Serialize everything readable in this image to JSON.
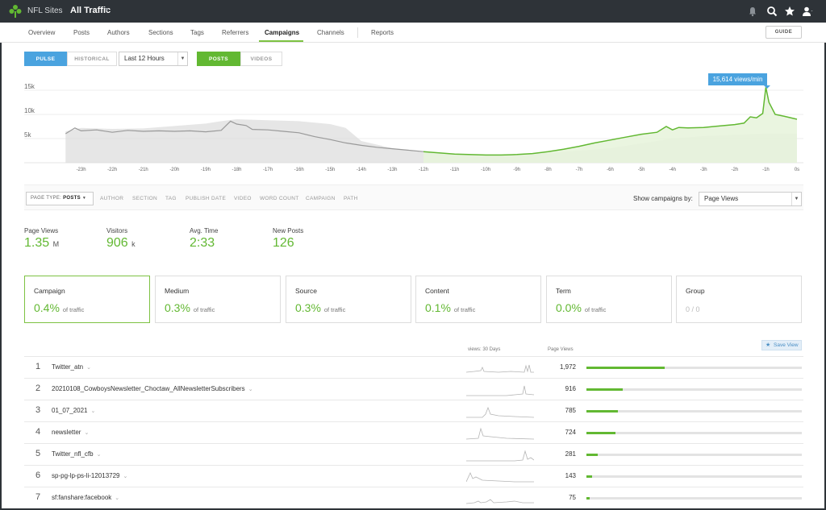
{
  "topbar": {
    "site": "NFL Sites",
    "traffic": "All Traffic",
    "icons": [
      "bell-icon",
      "search-icon",
      "star-icon",
      "user-icon"
    ]
  },
  "nav": {
    "items": [
      "Overview",
      "Posts",
      "Authors",
      "Sections",
      "Tags",
      "Referrers",
      "Campaigns",
      "Channels",
      "Reports"
    ],
    "active": "Campaigns",
    "guide": "GUIDE"
  },
  "controls": {
    "pulse": "PULSE",
    "historical": "HISTORICAL",
    "time_range": "Last 12 Hours",
    "posts": "POSTS",
    "videos": "VIDEOS"
  },
  "chart_data": {
    "type": "area",
    "peak_label": "15,614 views/min",
    "y_ticks": [
      "15k",
      "10k",
      "5k"
    ],
    "x_ticks": [
      "-23h",
      "-22h",
      "-21h",
      "-20h",
      "-19h",
      "-18h",
      "-17h",
      "-16h",
      "-15h",
      "-14h",
      "-13h",
      "-12h",
      "-11h",
      "-10h",
      "-9h",
      "-8h",
      "-7h",
      "-6h",
      "-5h",
      "-4h",
      "-3h",
      "-2h",
      "-1h",
      "0s"
    ],
    "ylim": [
      0,
      18000
    ],
    "series": [
      {
        "role": "comparison",
        "color": "#cfcfcf",
        "x": [
          -23.5,
          -23,
          -22,
          -21,
          -20,
          -19,
          -18.5,
          -18,
          -17.5,
          -17,
          -16,
          -15,
          -14.5,
          -14,
          -13,
          -12,
          -11,
          -10,
          -9,
          -8,
          -7,
          -6,
          -5,
          -4,
          -3,
          -2,
          -1,
          0
        ],
        "values": [
          6500,
          7200,
          7000,
          7100,
          7600,
          8100,
          8600,
          9000,
          8900,
          8800,
          8600,
          8000,
          7200,
          4500,
          3000,
          2200,
          1800,
          1500,
          1600,
          2000,
          2500,
          3000,
          4000,
          5000,
          5500,
          5800,
          6000,
          6000
        ]
      },
      {
        "role": "previous-12h",
        "color": "#999999",
        "x": [
          -23.5,
          -23.2,
          -23,
          -22.5,
          -22,
          -21.5,
          -21,
          -20.5,
          -20,
          -19.5,
          -19,
          -18.5,
          -18.2,
          -18,
          -17.7,
          -17.5,
          -17,
          -16.5,
          -16,
          -15.5,
          -15,
          -14.5,
          -14,
          -13.5,
          -13,
          -12.5,
          -12
        ],
        "values": [
          6000,
          7200,
          6600,
          6800,
          6300,
          6700,
          6500,
          6600,
          6500,
          6600,
          6400,
          6700,
          8600,
          8000,
          7700,
          6900,
          6800,
          6500,
          6200,
          5400,
          4800,
          4100,
          3600,
          3200,
          2900,
          2600,
          2300
        ]
      },
      {
        "role": "current",
        "color": "#62b832",
        "x": [
          -12,
          -11,
          -10,
          -9.5,
          -9,
          -8.5,
          -8,
          -7.5,
          -7,
          -6.5,
          -6,
          -5.5,
          -5,
          -4.5,
          -4.2,
          -4,
          -3.8,
          -3.5,
          -3,
          -2.5,
          -2,
          -1.7,
          -1.5,
          -1.3,
          -1.1,
          -1,
          -0.9,
          -0.7,
          -0.4,
          0
        ],
        "values": [
          2300,
          1800,
          1600,
          1600,
          1700,
          1900,
          2300,
          2800,
          3400,
          4100,
          4700,
          5300,
          5900,
          6300,
          7500,
          6800,
          7300,
          7200,
          7300,
          7600,
          7900,
          8200,
          9500,
          9300,
          10200,
          15614,
          12500,
          10000,
          9600,
          9000
        ]
      }
    ]
  },
  "filters": {
    "page_type_label": "PAGE TYPE:",
    "page_type_value": "POSTS",
    "items": [
      "AUTHOR",
      "SECTION",
      "TAG",
      "PUBLISH DATE",
      "VIDEO",
      "WORD COUNT",
      "CAMPAIGN",
      "PATH"
    ],
    "show_by_label": "Show campaigns by:",
    "show_by_value": "Page Views"
  },
  "stats": [
    {
      "label": "Page Views",
      "value": "1.35",
      "unit": "M"
    },
    {
      "label": "Visitors",
      "value": "906",
      "unit": "k"
    },
    {
      "label": "Avg. Time",
      "value": "2:33",
      "unit": ""
    },
    {
      "label": "New Posts",
      "value": "126",
      "unit": ""
    }
  ],
  "cards": [
    {
      "title": "Campaign",
      "value": "0.4%",
      "sub": "of traffic"
    },
    {
      "title": "Medium",
      "value": "0.3%",
      "sub": "of traffic"
    },
    {
      "title": "Source",
      "value": "0.3%",
      "sub": "of traffic"
    },
    {
      "title": "Content",
      "value": "0.1%",
      "sub": "of traffic"
    },
    {
      "title": "Term",
      "value": "0.0%",
      "sub": "of traffic"
    },
    {
      "title": "Group",
      "value": "0 / 0",
      "sub": ""
    }
  ],
  "table": {
    "col_spark": "views: 30 Days",
    "col_views": "Page Views",
    "save_view": "Save View",
    "rows": [
      {
        "rank": "1",
        "name": "Twitter_atn",
        "views": "1,972",
        "fraction": 0.365
      },
      {
        "rank": "2",
        "name": "20210108_CowboysNewsletter_Choctaw_AllNewsletterSubscribers",
        "views": "916",
        "fraction": 0.17
      },
      {
        "rank": "3",
        "name": "01_07_2021",
        "views": "785",
        "fraction": 0.145
      },
      {
        "rank": "4",
        "name": "newsletter",
        "views": "724",
        "fraction": 0.134
      },
      {
        "rank": "5",
        "name": "Twitter_nfl_cfb",
        "views": "281",
        "fraction": 0.052
      },
      {
        "rank": "6",
        "name": "sp-pg-lp-ps-li-12013729",
        "views": "143",
        "fraction": 0.026
      },
      {
        "rank": "7",
        "name": "sf:fanshare:facebook",
        "views": "75",
        "fraction": 0.014
      }
    ]
  }
}
